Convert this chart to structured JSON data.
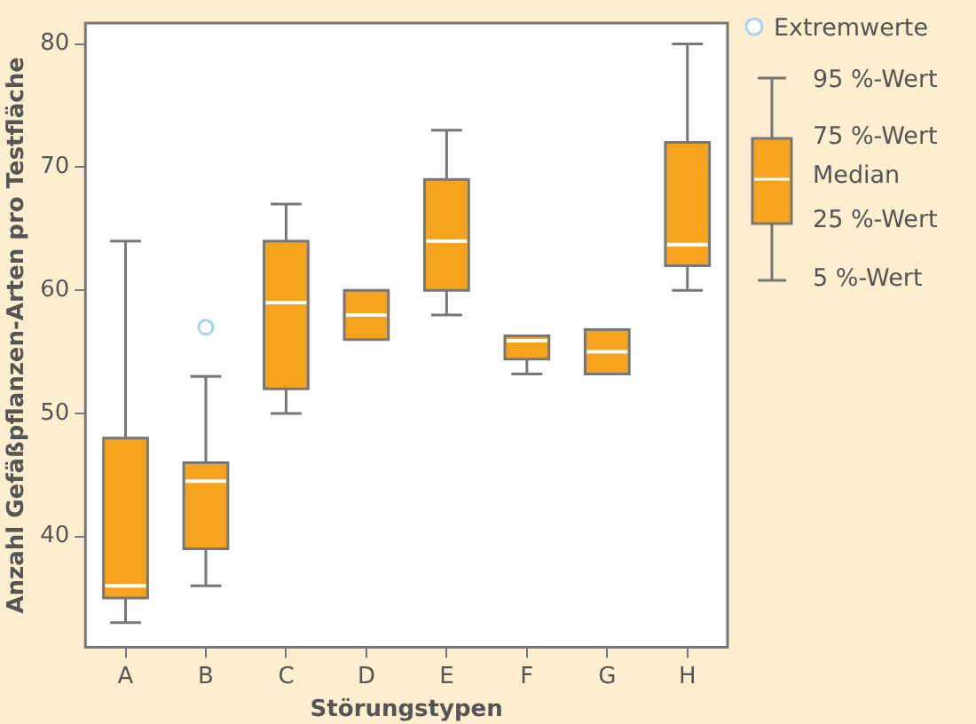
{
  "chart_data": {
    "type": "box",
    "xlabel": "Störungstypen",
    "ylabel": "Anzahl Gefäßpflanzen-Arten pro Testfläche",
    "categories": [
      "A",
      "B",
      "C",
      "D",
      "E",
      "F",
      "G",
      "H"
    ],
    "series": [
      {
        "color": "#f5a31c",
        "boxes": [
          {
            "low": 33,
            "q1": 35,
            "median": 36,
            "q3": 48,
            "high": 64
          },
          {
            "low": 36,
            "q1": 39,
            "median": 44.5,
            "q3": 46,
            "high": 53
          },
          {
            "low": 50,
            "q1": 52,
            "median": 59,
            "q3": 64,
            "high": 67
          },
          {
            "low": 56,
            "q1": 56,
            "median": 58,
            "q3": 60,
            "high": 60
          },
          {
            "low": 58,
            "q1": 60,
            "median": 64,
            "q3": 69,
            "high": 73
          },
          {
            "low": 53.2,
            "q1": 54.4,
            "median": 55.9,
            "q3": 56.3,
            "high": 56.3
          },
          {
            "low": 53.2,
            "q1": 53.2,
            "median": 55,
            "q3": 56.8,
            "high": 56.8
          },
          {
            "low": 60,
            "q1": 62,
            "median": 63.7,
            "q3": 72,
            "high": 80
          }
        ]
      },
      {
        "type": "scatter",
        "name": "Extremwerte",
        "x": [
          "B"
        ],
        "values": [
          57
        ],
        "color": "#a8d4f0",
        "marker": "circle"
      }
    ],
    "ylim": [
      31,
      81.7
    ],
    "yticks": [
      40,
      50,
      60,
      70,
      80
    ],
    "grid": false,
    "legend": "top right",
    "annotations": [
      "95 %-Wert",
      "75 %-Wert",
      "Median",
      "25 %-Wert",
      "5 %-Wert"
    ]
  }
}
